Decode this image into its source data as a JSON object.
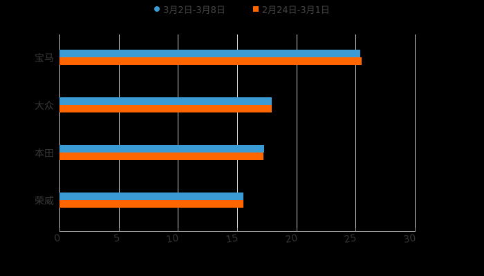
{
  "chart_data": {
    "type": "bar",
    "orientation": "horizontal",
    "title": "",
    "categories": [
      "宝马",
      "大众",
      "本田",
      "荣威"
    ],
    "series": [
      {
        "name": "3月2日-3月8日",
        "color": "#3a9bd5",
        "values": [
          25.4,
          17.9,
          17.3,
          15.5
        ]
      },
      {
        "name": "2月24日-3月1日",
        "color": "#ff6600",
        "values": [
          25.5,
          17.9,
          17.2,
          15.5
        ]
      }
    ],
    "xlabel": "",
    "ylabel": "",
    "xlim": [
      0,
      30
    ],
    "x_ticks": [
      "0",
      "5",
      "10",
      "15",
      "20",
      "25",
      "30"
    ],
    "grid": true,
    "legend_position": "top"
  },
  "legend": {
    "items": [
      {
        "label": "3月2日-3月8日",
        "color": "#3a9bd5",
        "shape": "circle"
      },
      {
        "label": "2月24日-3月1日",
        "color": "#ff6600",
        "shape": "square"
      }
    ]
  }
}
